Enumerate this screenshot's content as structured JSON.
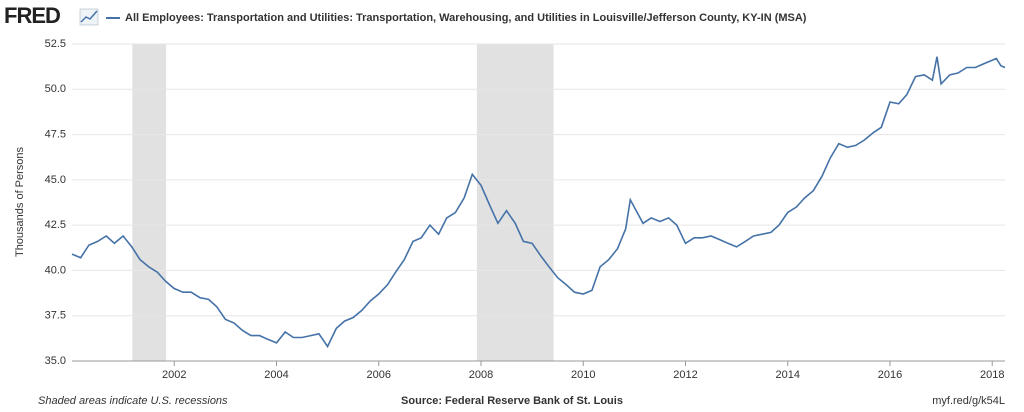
{
  "logo": "FRED",
  "chart_data": {
    "type": "line",
    "series_name": "All Employees: Transportation and Utilities: Transportation, Warehousing, and Utilities in Louisville/Jefferson County, KY-IN (MSA)",
    "color": "#4572a7",
    "ylabel": "Thousands of Persons",
    "x": [
      2000,
      2000.17,
      2000.33,
      2000.5,
      2000.67,
      2000.83,
      2001,
      2001.17,
      2001.33,
      2001.5,
      2001.67,
      2001.83,
      2002,
      2002.17,
      2002.33,
      2002.5,
      2002.67,
      2002.83,
      2003,
      2003.17,
      2003.33,
      2003.5,
      2003.67,
      2003.83,
      2004,
      2004.17,
      2004.33,
      2004.5,
      2004.67,
      2004.83,
      2005,
      2005.17,
      2005.33,
      2005.5,
      2005.67,
      2005.83,
      2006,
      2006.17,
      2006.33,
      2006.5,
      2006.67,
      2006.83,
      2007,
      2007.17,
      2007.33,
      2007.5,
      2007.67,
      2007.83,
      2008,
      2008.17,
      2008.33,
      2008.5,
      2008.67,
      2008.83,
      2009,
      2009.17,
      2009.33,
      2009.5,
      2009.67,
      2009.83,
      2010,
      2010.17,
      2010.33,
      2010.5,
      2010.67,
      2010.83,
      2010.92,
      2011.17,
      2011.33,
      2011.5,
      2011.67,
      2011.83,
      2012,
      2012.17,
      2012.33,
      2012.5,
      2012.67,
      2012.83,
      2013,
      2013.17,
      2013.33,
      2013.5,
      2013.67,
      2013.83,
      2014,
      2014.17,
      2014.33,
      2014.5,
      2014.67,
      2014.83,
      2015,
      2015.17,
      2015.33,
      2015.5,
      2015.67,
      2015.83,
      2016,
      2016.17,
      2016.33,
      2016.5,
      2016.67,
      2016.83,
      2016.92,
      2017,
      2017.17,
      2017.33,
      2017.5,
      2017.67,
      2017.83,
      2018,
      2018.08,
      2018.17,
      2018.25
    ],
    "values": [
      40.9,
      40.7,
      41.4,
      41.6,
      41.9,
      41.5,
      41.9,
      41.3,
      40.6,
      40.2,
      39.9,
      39.4,
      39.0,
      38.8,
      38.8,
      38.5,
      38.4,
      38.0,
      37.3,
      37.1,
      36.7,
      36.4,
      36.4,
      36.2,
      36.0,
      36.6,
      36.3,
      36.3,
      36.4,
      36.5,
      35.8,
      36.8,
      37.2,
      37.4,
      37.8,
      38.3,
      38.7,
      39.2,
      39.9,
      40.6,
      41.6,
      41.8,
      42.5,
      42.0,
      42.9,
      43.2,
      44.0,
      45.3,
      44.7,
      43.6,
      42.6,
      43.3,
      42.6,
      41.6,
      41.5,
      40.8,
      40.2,
      39.6,
      39.2,
      38.8,
      38.7,
      38.9,
      40.2,
      40.6,
      41.2,
      42.3,
      43.9,
      42.6,
      42.9,
      42.7,
      42.9,
      42.5,
      41.5,
      41.8,
      41.8,
      41.9,
      41.7,
      41.5,
      41.3,
      41.6,
      41.9,
      42.0,
      42.1,
      42.5,
      43.2,
      43.5,
      44.0,
      44.4,
      45.2,
      46.2,
      47.0,
      46.8,
      46.9,
      47.2,
      47.6,
      47.9,
      49.3,
      49.2,
      49.7,
      50.7,
      50.8,
      50.5,
      51.8,
      50.3,
      50.8,
      50.9,
      51.2,
      51.2,
      51.4,
      51.6,
      51.7,
      51.3,
      51.2
    ],
    "xlim": [
      2000,
      2018.25
    ],
    "xticks": [
      2002,
      2004,
      2006,
      2008,
      2010,
      2012,
      2014,
      2016,
      2018
    ],
    "ylim": [
      35,
      52.5
    ],
    "yticks": [
      {
        "value": 35,
        "label": "35.0"
      },
      {
        "value": 37.5,
        "label": "37.5"
      },
      {
        "value": 40,
        "label": "40.0"
      },
      {
        "value": 42.5,
        "label": "42.5"
      },
      {
        "value": 45,
        "label": "45.0"
      },
      {
        "value": 47.5,
        "label": "47.5"
      },
      {
        "value": 50,
        "label": "50.0"
      },
      {
        "value": 52.5,
        "label": "52.5"
      }
    ],
    "grid": true,
    "recessions": [
      {
        "start": 2001.18,
        "end": 2001.84
      },
      {
        "start": 2007.92,
        "end": 2009.42
      }
    ],
    "recession_color": "#e1e1e1",
    "footer_left": "Shaded areas indicate U.S. recessions",
    "footer_center": "Source: Federal Reserve Bank of St. Louis",
    "footer_right": "myf.red/g/k54L"
  }
}
